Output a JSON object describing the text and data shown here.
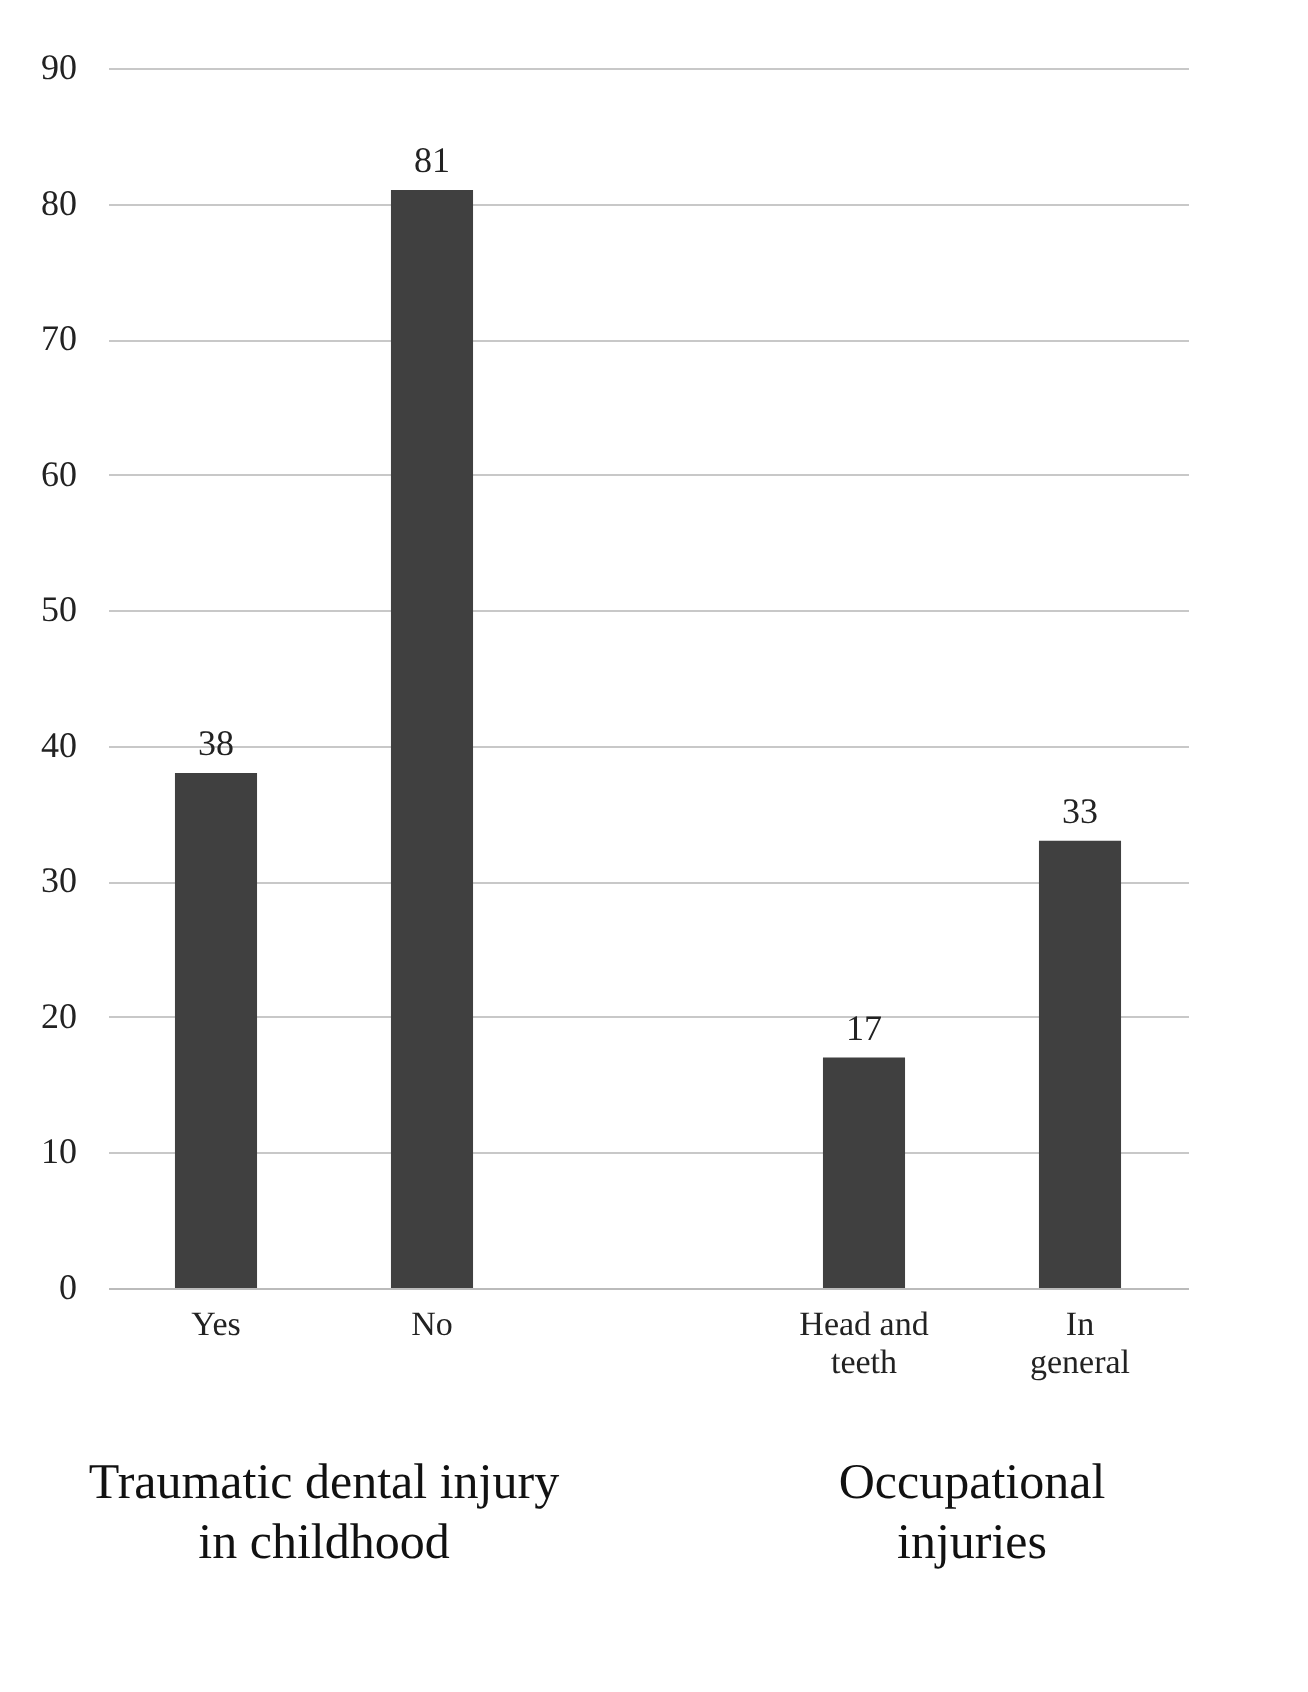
{
  "chart_data": {
    "type": "bar",
    "categories": [
      "Yes",
      "No",
      null,
      "Head and teeth",
      "In general"
    ],
    "values": [
      38,
      81,
      null,
      17,
      33
    ],
    "color": "#404040",
    "ylim": [
      0,
      90
    ],
    "yticks": [
      0,
      10,
      20,
      30,
      40,
      50,
      60,
      70,
      80,
      90
    ],
    "grid": "y",
    "data_labels": true,
    "annotations": [
      "Traumatic dental injury in childhood",
      "Occupational injuries"
    ]
  }
}
